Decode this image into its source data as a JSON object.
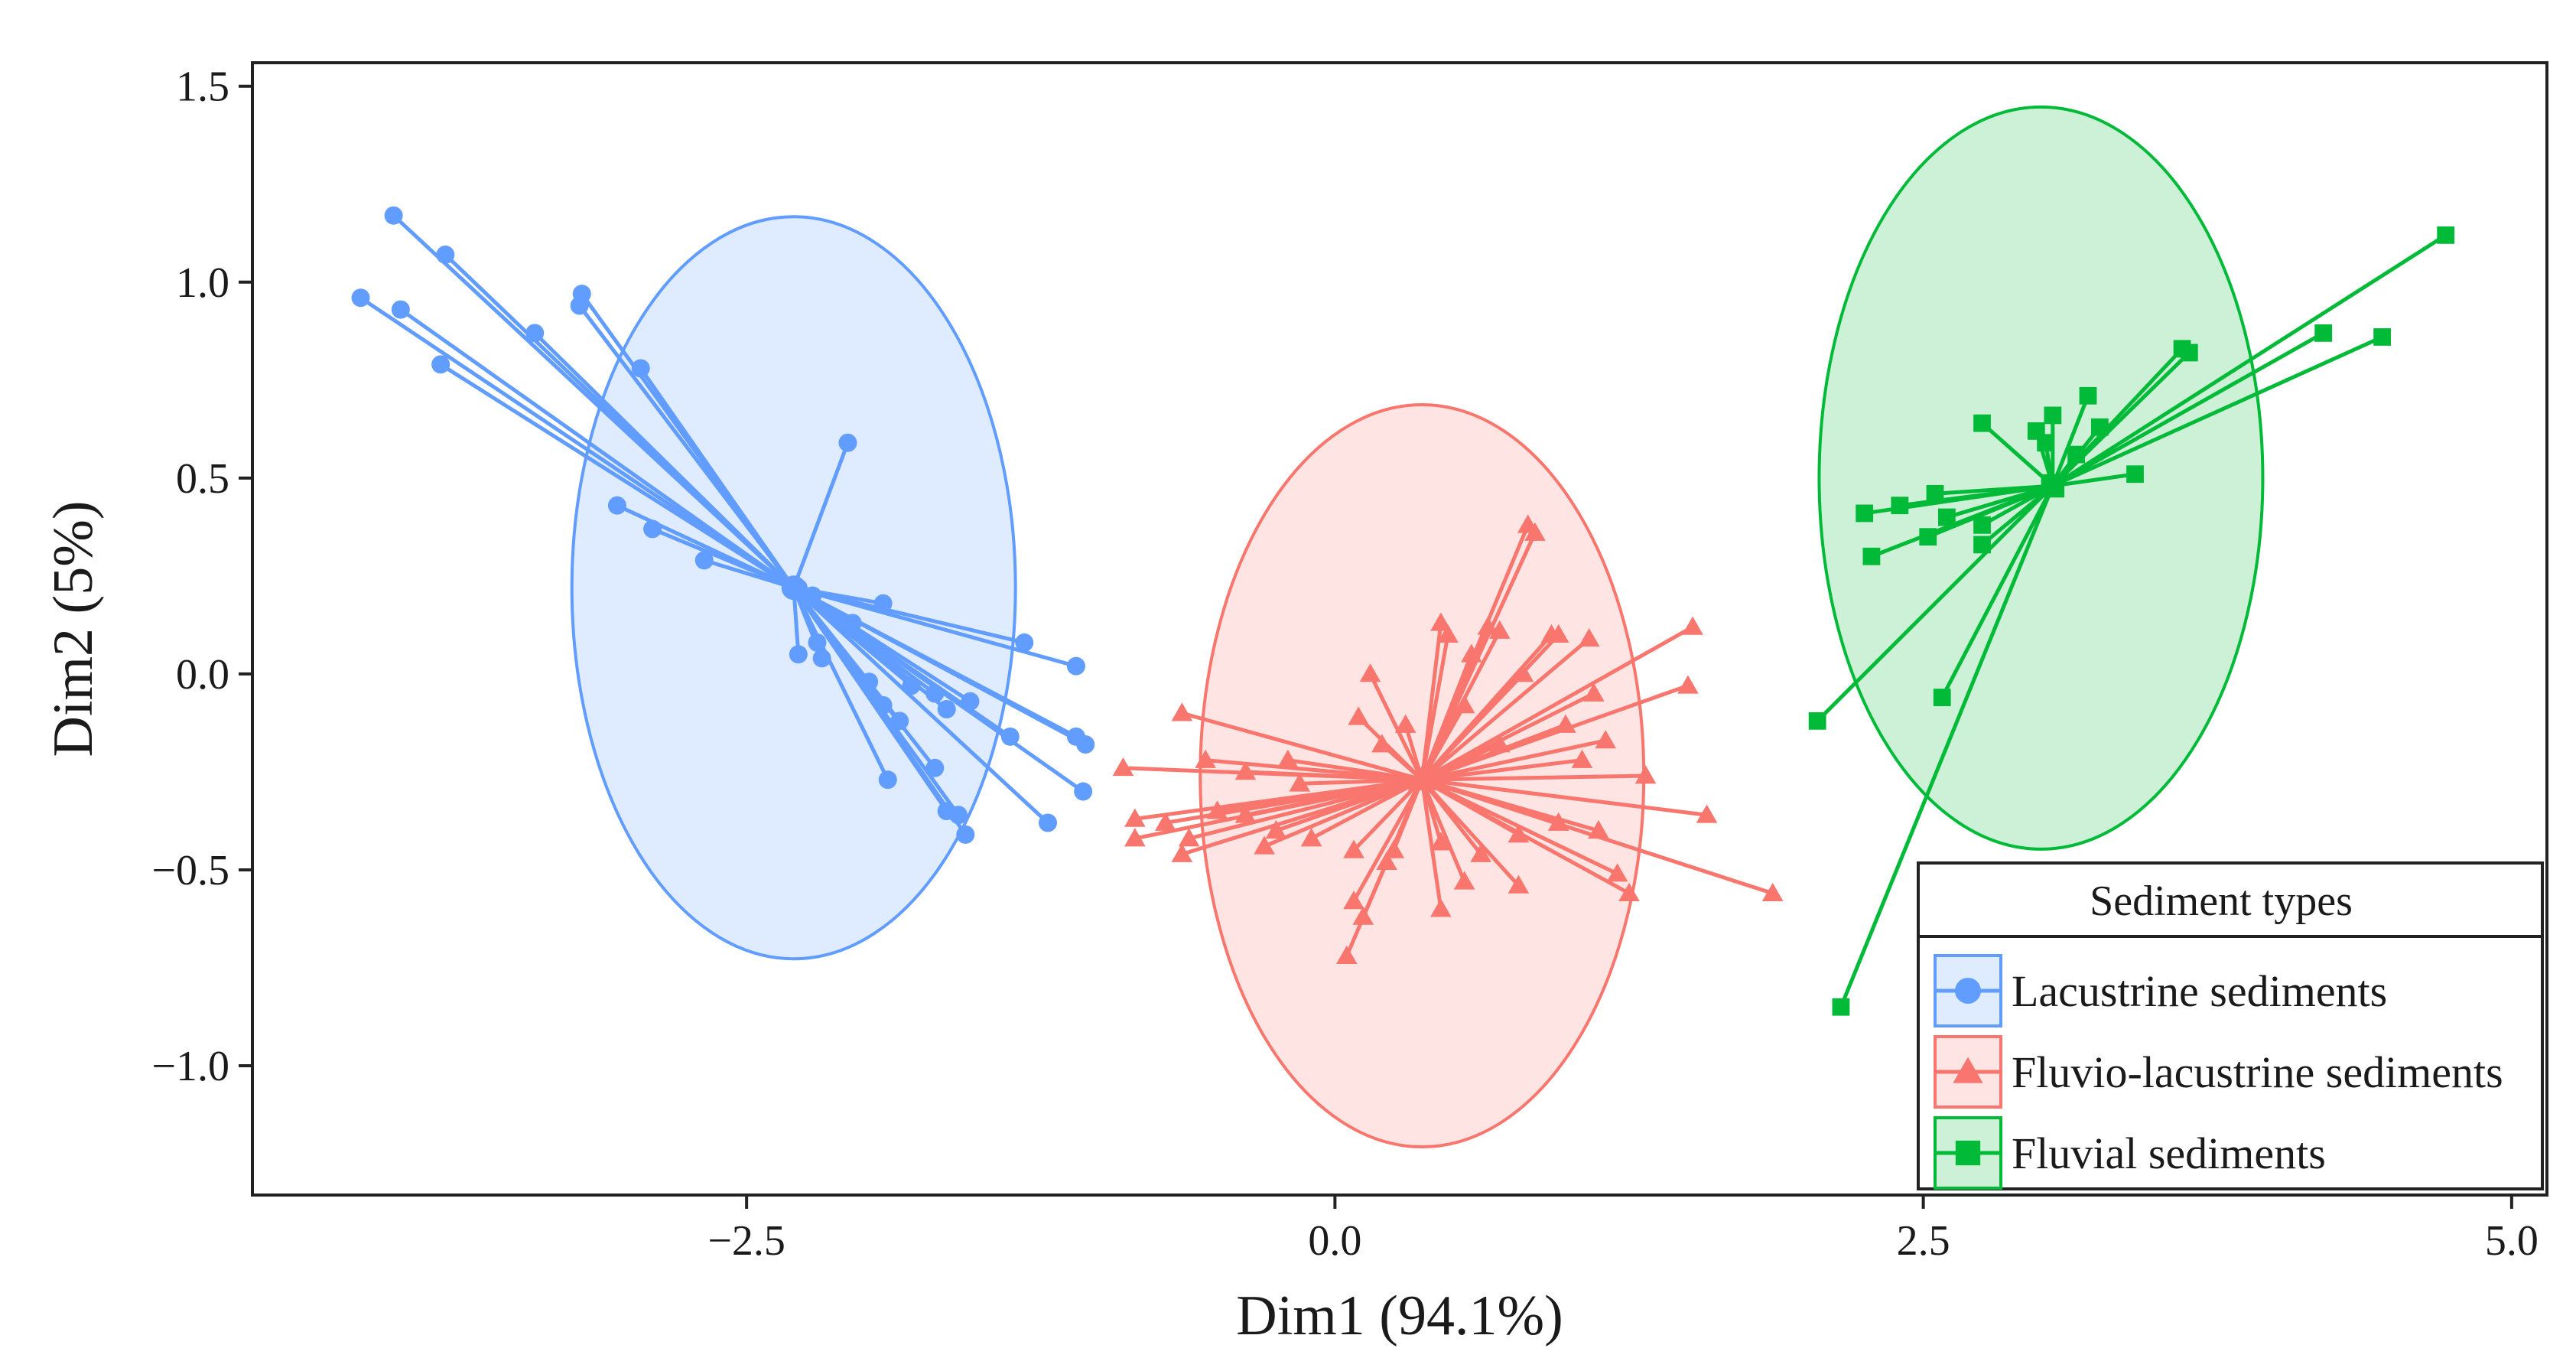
{
  "chart_data": {
    "type": "scatter",
    "subtype": "biplot-with-confidence-ellipses",
    "xlabel": "Dim1 (94.1%)",
    "ylabel": "Dim2 (5%)",
    "xlim": [
      -4.6,
      5.15
    ],
    "ylim": [
      -1.33,
      1.56
    ],
    "x_ticks": [
      -2.5,
      0.0,
      2.5,
      5.0
    ],
    "x_tick_labels": [
      "−2.5",
      "0.0",
      "2.5",
      "5.0"
    ],
    "y_ticks": [
      1.5,
      1.0,
      0.5,
      0.0,
      -0.5,
      -1.0
    ],
    "y_tick_labels": [
      "1.5",
      "1.0",
      "0.5",
      "0.0",
      "−0.5",
      "−1.0"
    ],
    "grid": false,
    "legend": {
      "title": "Sediment types",
      "position": "bottom-right",
      "entries": [
        "Lacustrine sediments",
        "Fluvio-lacustrine sediments",
        "Fluvial sediments"
      ]
    },
    "series": [
      {
        "name": "Lacustrine sediments",
        "marker": "circle",
        "color": "#619cff",
        "centroid": [
          -2.3,
          0.22
        ],
        "ellipse": {
          "center": [
            -2.3,
            0.22
          ],
          "rx": 0.95,
          "ry": 0.95
        },
        "points": [
          [
            -4.0,
            1.17
          ],
          [
            -3.78,
            1.07
          ],
          [
            -4.14,
            0.96
          ],
          [
            -3.97,
            0.93
          ],
          [
            -3.2,
            0.97
          ],
          [
            -3.21,
            0.94
          ],
          [
            -3.4,
            0.87
          ],
          [
            -2.95,
            0.78
          ],
          [
            -3.8,
            0.79
          ],
          [
            -2.07,
            0.59
          ],
          [
            -3.05,
            0.43
          ],
          [
            -2.9,
            0.37
          ],
          [
            -2.68,
            0.29
          ],
          [
            -2.28,
            0.22
          ],
          [
            -2.22,
            0.2
          ],
          [
            -2.05,
            0.13
          ],
          [
            -2.2,
            0.08
          ],
          [
            -1.92,
            0.18
          ],
          [
            -1.32,
            0.08
          ],
          [
            -1.1,
            0.02
          ],
          [
            -2.28,
            0.05
          ],
          [
            -2.18,
            0.04
          ],
          [
            -1.98,
            -0.02
          ],
          [
            -1.8,
            -0.03
          ],
          [
            -1.92,
            -0.08
          ],
          [
            -1.7,
            -0.05
          ],
          [
            -1.55,
            -0.07
          ],
          [
            -1.85,
            -0.12
          ],
          [
            -1.65,
            -0.09
          ],
          [
            -1.1,
            -0.16
          ],
          [
            -1.06,
            -0.18
          ],
          [
            -1.38,
            -0.16
          ],
          [
            -1.07,
            -0.3
          ],
          [
            -1.9,
            -0.27
          ],
          [
            -1.7,
            -0.24
          ],
          [
            -1.65,
            -0.35
          ],
          [
            -1.6,
            -0.36
          ],
          [
            -1.57,
            -0.41
          ],
          [
            -1.22,
            -0.38
          ]
        ]
      },
      {
        "name": "Fluvio-lacustrine sediments",
        "marker": "triangle",
        "color": "#f8766d",
        "centroid": [
          0.37,
          -0.27
        ],
        "ellipse": {
          "center": [
            0.37,
            -0.26
          ],
          "rx": 0.95,
          "ry": 0.95
        },
        "points": [
          [
            0.82,
            0.38
          ],
          [
            0.85,
            0.36
          ],
          [
            0.45,
            0.13
          ],
          [
            0.48,
            0.1
          ],
          [
            0.65,
            0.12
          ],
          [
            0.7,
            0.11
          ],
          [
            0.92,
            0.1
          ],
          [
            0.95,
            0.1
          ],
          [
            1.08,
            0.09
          ],
          [
            1.52,
            0.12
          ],
          [
            1.5,
            -0.03
          ],
          [
            0.15,
            0.0
          ],
          [
            0.58,
            0.05
          ],
          [
            0.8,
            0.0
          ],
          [
            1.1,
            -0.05
          ],
          [
            0.1,
            -0.11
          ],
          [
            0.3,
            -0.13
          ],
          [
            0.55,
            -0.08
          ],
          [
            0.98,
            -0.13
          ],
          [
            1.15,
            -0.17
          ],
          [
            -0.65,
            -0.1
          ],
          [
            -0.9,
            -0.24
          ],
          [
            -0.55,
            -0.22
          ],
          [
            -0.38,
            -0.25
          ],
          [
            -0.15,
            -0.28
          ],
          [
            -0.2,
            -0.22
          ],
          [
            0.2,
            -0.18
          ],
          [
            0.7,
            -0.18
          ],
          [
            1.05,
            -0.22
          ],
          [
            1.32,
            -0.26
          ],
          [
            1.58,
            -0.36
          ],
          [
            1.86,
            -0.56
          ],
          [
            -0.85,
            -0.37
          ],
          [
            -0.72,
            -0.38
          ],
          [
            -0.62,
            -0.42
          ],
          [
            -0.5,
            -0.35
          ],
          [
            -0.38,
            -0.36
          ],
          [
            -0.25,
            -0.4
          ],
          [
            -0.1,
            -0.42
          ],
          [
            0.08,
            -0.45
          ],
          [
            0.22,
            -0.48
          ],
          [
            0.45,
            -0.43
          ],
          [
            0.62,
            -0.46
          ],
          [
            0.78,
            -0.41
          ],
          [
            0.95,
            -0.38
          ],
          [
            1.12,
            -0.4
          ],
          [
            1.2,
            -0.51
          ],
          [
            1.25,
            -0.56
          ],
          [
            -0.85,
            -0.42
          ],
          [
            -0.65,
            -0.46
          ],
          [
            0.08,
            -0.58
          ],
          [
            0.12,
            -0.62
          ],
          [
            0.05,
            -0.72
          ],
          [
            0.45,
            -0.6
          ],
          [
            0.78,
            -0.54
          ],
          [
            0.25,
            -0.45
          ],
          [
            0.55,
            -0.53
          ],
          [
            -0.3,
            -0.44
          ]
        ]
      },
      {
        "name": "Fluvial sediments",
        "marker": "square",
        "color": "#00ba38",
        "centroid": [
          3.05,
          0.48
        ],
        "ellipse": {
          "center": [
            3.0,
            0.5
          ],
          "rx": 0.95,
          "ry": 0.95
        },
        "points": [
          [
            4.72,
            1.12
          ],
          [
            4.2,
            0.87
          ],
          [
            4.45,
            0.86
          ],
          [
            3.6,
            0.83
          ],
          [
            3.63,
            0.82
          ],
          [
            3.2,
            0.71
          ],
          [
            3.05,
            0.66
          ],
          [
            2.75,
            0.64
          ],
          [
            2.98,
            0.62
          ],
          [
            3.25,
            0.63
          ],
          [
            3.02,
            0.59
          ],
          [
            3.15,
            0.56
          ],
          [
            3.4,
            0.51
          ],
          [
            2.55,
            0.46
          ],
          [
            2.4,
            0.43
          ],
          [
            2.25,
            0.41
          ],
          [
            2.6,
            0.4
          ],
          [
            2.75,
            0.38
          ],
          [
            2.52,
            0.35
          ],
          [
            2.75,
            0.33
          ],
          [
            2.28,
            0.3
          ],
          [
            2.58,
            -0.06
          ],
          [
            2.05,
            -0.12
          ],
          [
            2.15,
            -0.85
          ]
        ]
      }
    ]
  }
}
